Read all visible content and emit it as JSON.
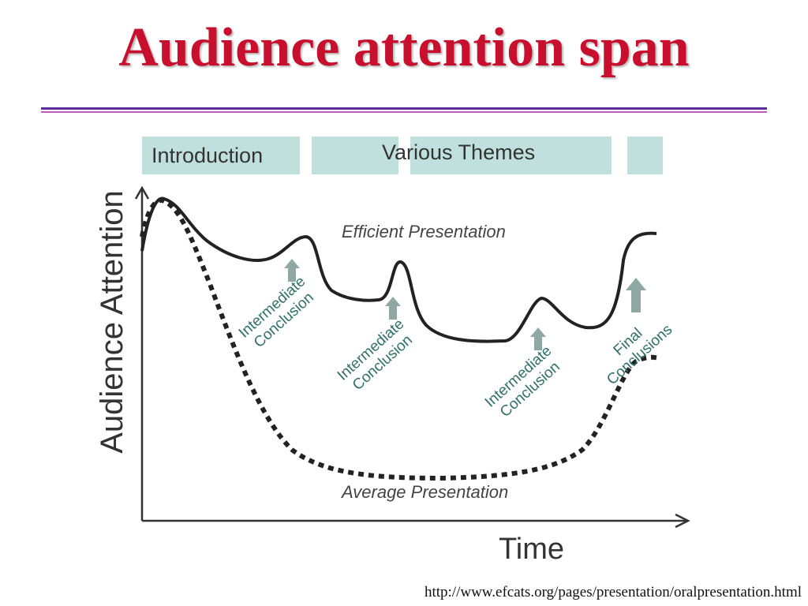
{
  "slide": {
    "title": "Audience attention span",
    "source_url": "http://www.efcats.org/pages/presentation/oralpresentation.html"
  },
  "diagram": {
    "bands": {
      "introduction": "Introduction",
      "themes": "Various Themes"
    },
    "y_axis_label": "Audience Attention",
    "x_axis_label": "Time",
    "curves": {
      "efficient": "Efficient Presentation",
      "average": "Average Presentation"
    },
    "conclusions": [
      {
        "line1": "Intermediate",
        "line2": "Conclusion"
      },
      {
        "line1": "Intermediate",
        "line2": "Conclusion"
      },
      {
        "line1": "Intermediate",
        "line2": "Conclusion"
      },
      {
        "line1": "Final",
        "line2": "Conclusions"
      }
    ],
    "colors": {
      "title": "#c8102e",
      "band": "#bfe0dc",
      "arrow": "#8fa8a4",
      "curve": "#222222"
    }
  }
}
